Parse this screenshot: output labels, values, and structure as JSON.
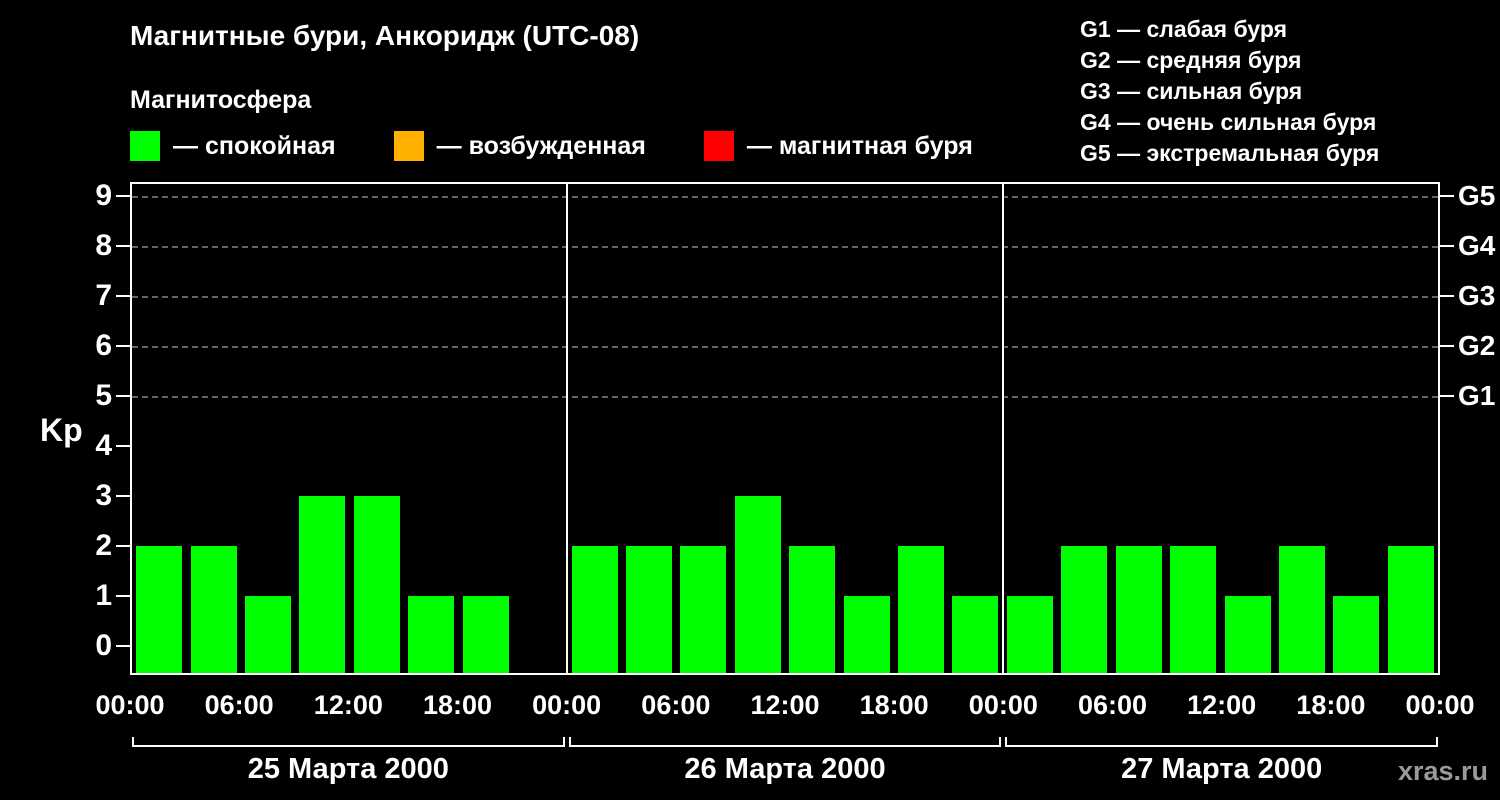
{
  "watermark": "xras.ru",
  "chart_data": {
    "type": "bar",
    "title": "Магнитные бури, Анкоридж (UTC-08)",
    "subtitle": "Магнитосфера",
    "legend": [
      {
        "label": "— спокойная",
        "color": "#00ff00"
      },
      {
        "label": "— возбужденная",
        "color": "#ffb000"
      },
      {
        "label": "— магнитная буря",
        "color": "#ff0000"
      }
    ],
    "storm_scale_legend": [
      "G1 — слабая буря",
      "G2 — средняя буря",
      "G3 — сильная буря",
      "G4 — очень сильная буря",
      "G5 — экстремальная буря"
    ],
    "ylabel": "Kp",
    "ylim": [
      0,
      9
    ],
    "yticks": [
      0,
      1,
      2,
      3,
      4,
      5,
      6,
      7,
      8,
      9
    ],
    "gridlines_at": [
      5,
      6,
      7,
      8,
      9
    ],
    "grid_style": "dashed horizontal at G storm levels only",
    "right_axis": [
      {
        "level": 5,
        "label": "G1"
      },
      {
        "level": 6,
        "label": "G2"
      },
      {
        "level": 7,
        "label": "G3"
      },
      {
        "level": 8,
        "label": "G4"
      },
      {
        "level": 9,
        "label": "G5"
      }
    ],
    "bar_color": "#00ff00",
    "bar_interval_hours": 3,
    "x_tick_labels": [
      "00:00",
      "06:00",
      "12:00",
      "18:00"
    ],
    "x_end_label": "00:00",
    "days": [
      {
        "date": "25 Марта 2000",
        "kp_values": [
          2,
          2,
          1,
          3,
          3,
          1,
          1,
          0
        ]
      },
      {
        "date": "26 Марта 2000",
        "kp_values": [
          2,
          2,
          2,
          3,
          2,
          1,
          2,
          1
        ]
      },
      {
        "date": "27 Марта 2000",
        "kp_values": [
          1,
          2,
          2,
          2,
          1,
          2,
          1,
          2
        ]
      }
    ]
  }
}
